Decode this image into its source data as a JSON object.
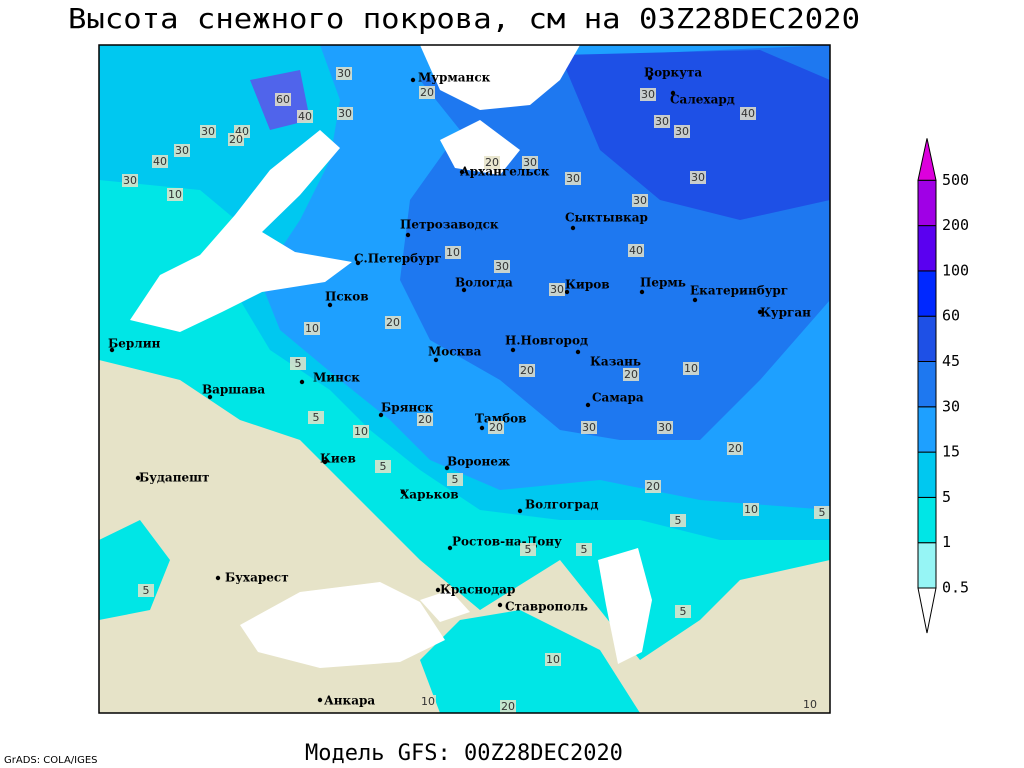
{
  "header": {
    "title": "Высота снежного покрова, см на 03Z28DEC2020"
  },
  "footer": {
    "model": "Модель GFS: 00Z28DEC2020",
    "credit": "GrADS: COLA/IGES"
  },
  "legend": {
    "levels": [
      "0.5",
      "1",
      "5",
      "15",
      "30",
      "45",
      "60",
      "100",
      "200",
      "500"
    ],
    "colors": [
      "#ffffff",
      "#96f5f5",
      "#00e6e6",
      "#00c8f0",
      "#1ea0ff",
      "#1e78f0",
      "#1e50e6",
      "#0028ff",
      "#5a00f0",
      "#a000e6",
      "#dc00dc"
    ]
  },
  "cities": [
    "Мурманск",
    "Воркута",
    "Салехард",
    "Архангельск",
    "Петрозаводск",
    "Сыктывкар",
    "С.Петербург",
    "Вологда",
    "Киров",
    "Пермь",
    "Екатеринбург",
    "Курган",
    "Псков",
    "Берлин",
    "Н.Новгород",
    "Москва",
    "Казань",
    "Минск",
    "Варшава",
    "Самара",
    "Брянск",
    "Тамбов",
    "Киев",
    "Воронеж",
    "Будапешт",
    "Харьков",
    "Волгоград",
    "Ростов-на-Дону",
    "Бухарест",
    "Краснодар",
    "Ставрополь",
    "Анкара"
  ],
  "contour_labels": [
    "30",
    "60",
    "40",
    "20",
    "30",
    "40",
    "30",
    "10",
    "20",
    "30",
    "40",
    "30",
    "30",
    "20",
    "30",
    "30",
    "30",
    "30",
    "30",
    "40",
    "30",
    "40",
    "10",
    "20",
    "30",
    "30",
    "10",
    "5",
    "5",
    "10",
    "20",
    "20",
    "20",
    "20",
    "10",
    "30",
    "30",
    "20",
    "5",
    "5",
    "20",
    "10",
    "5",
    "5",
    "5",
    "5",
    "5",
    "10",
    "20",
    "10",
    "5",
    "10"
  ]
}
